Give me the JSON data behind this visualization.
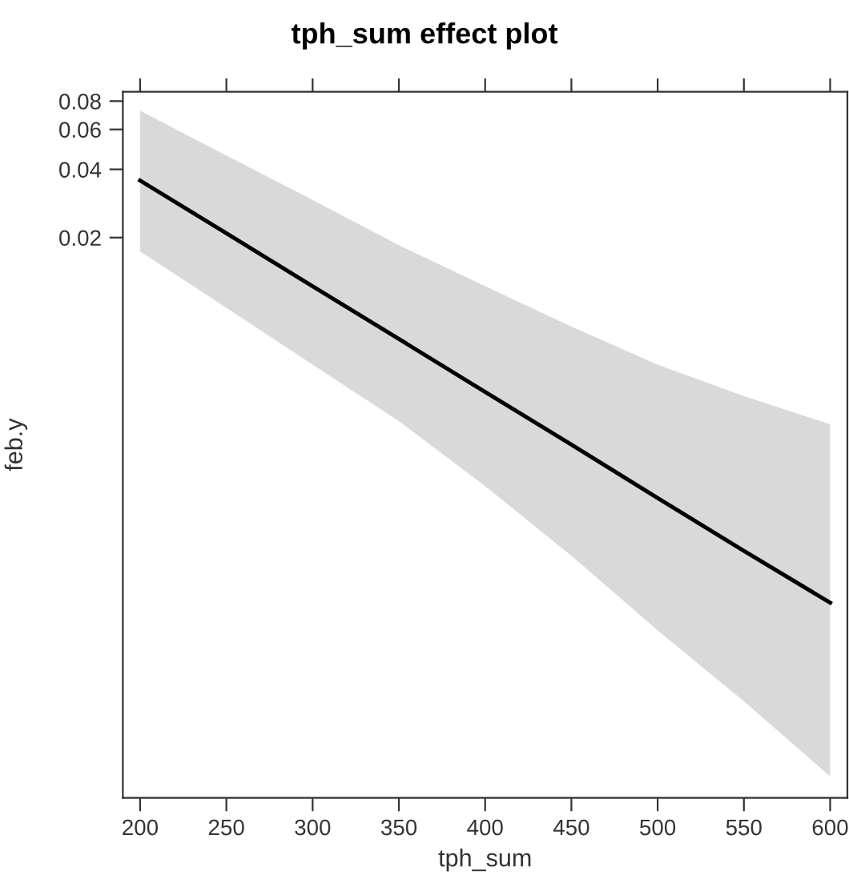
{
  "chart_data": {
    "type": "line",
    "title": "tph_sum effect plot",
    "xlabel": "tph_sum",
    "ylabel": "feb.y",
    "x": [
      200,
      250,
      300,
      350,
      400,
      450,
      500,
      550,
      600
    ],
    "series": [
      {
        "color": "#000000",
        "values": [
          0.0357,
          0.0209,
          0.0122,
          0.00714,
          0.00417,
          0.00244,
          0.00142,
          0.00083,
          0.00049
        ],
        "lower": [
          0.0174,
          0.0098,
          0.0055,
          0.0031,
          0.0016,
          0.00079,
          0.00037,
          0.00018,
          8.4e-05
        ],
        "upper": [
          0.0726,
          0.046,
          0.0293,
          0.0185,
          0.0122,
          0.0081,
          0.0055,
          0.004,
          0.003
        ]
      }
    ],
    "log": "y",
    "xlim": [
      190,
      610
    ],
    "xticks": [
      200,
      250,
      300,
      350,
      400,
      450,
      500,
      550,
      600
    ],
    "ylim": [
      6.75e-05,
      0.088
    ],
    "yticks": [
      0.02,
      0.04,
      0.06,
      0.08
    ],
    "grid": false,
    "legend": false,
    "line_style": "solid",
    "marker": "none"
  }
}
